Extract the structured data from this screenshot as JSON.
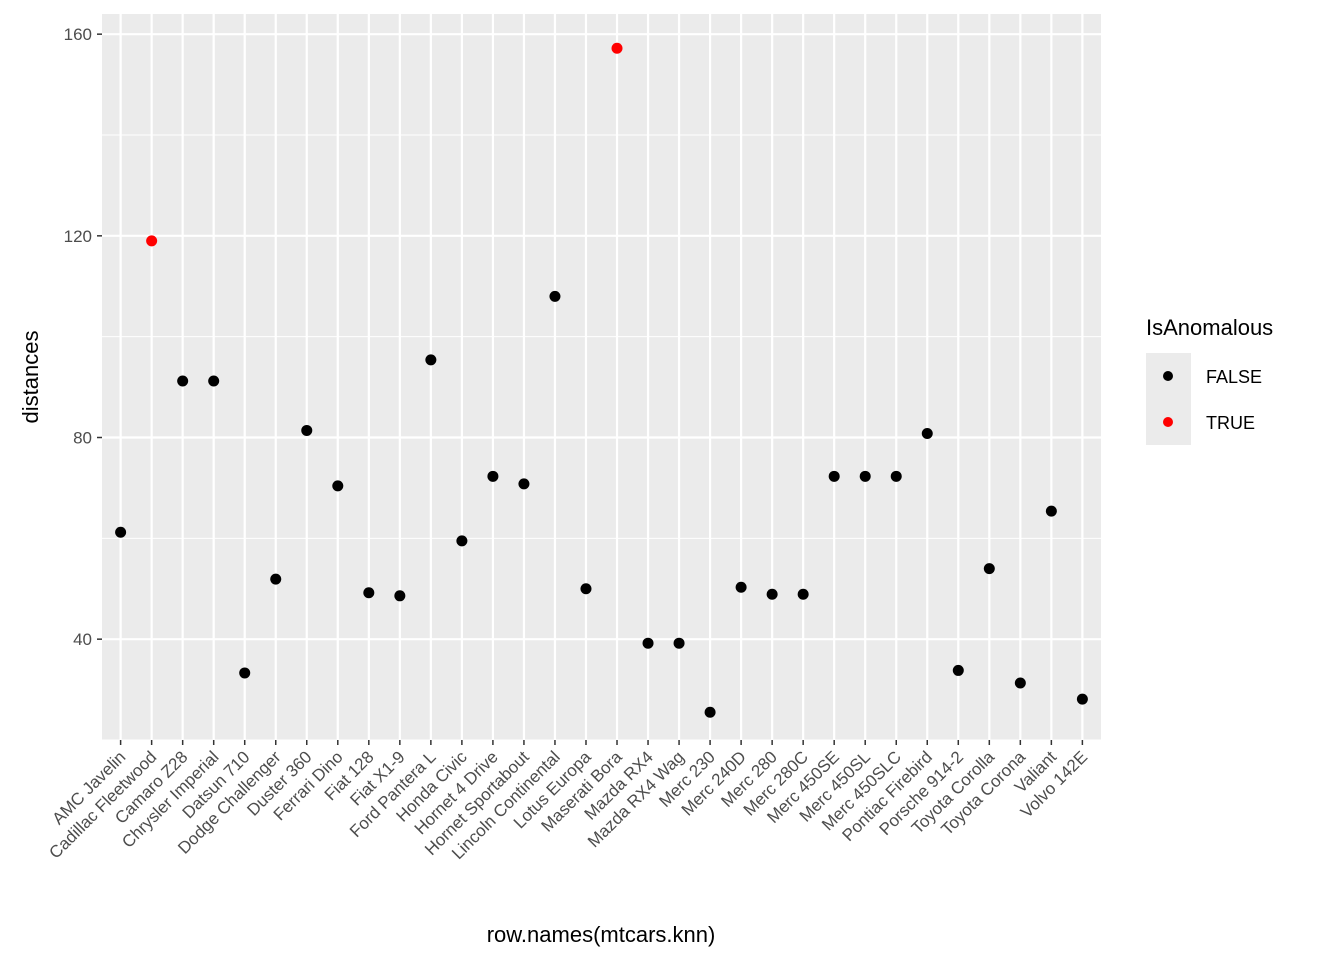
{
  "chart_data": {
    "type": "scatter",
    "title": "",
    "xlabel": "row.names(mtcars.knn)",
    "ylabel": "distances",
    "ylim": [
      20,
      164
    ],
    "y_ticks": [
      40,
      80,
      120,
      160
    ],
    "categories": [
      "AMC Javelin",
      "Cadillac Fleetwood",
      "Camaro Z28",
      "Chrysler Imperial",
      "Datsun 710",
      "Dodge Challenger",
      "Duster 360",
      "Ferrari Dino",
      "Fiat 128",
      "Fiat X1-9",
      "Ford Pantera L",
      "Honda Civic",
      "Hornet 4 Drive",
      "Hornet Sportabout",
      "Lincoln Continental",
      "Lotus Europa",
      "Maserati Bora",
      "Mazda RX4",
      "Mazda RX4 Wag",
      "Merc 230",
      "Merc 240D",
      "Merc 280",
      "Merc 280C",
      "Merc 450SE",
      "Merc 450SL",
      "Merc 450SLC",
      "Pontiac Firebird",
      "Porsche 914-2",
      "Toyota Corolla",
      "Toyota Corona",
      "Valiant",
      "Volvo 142E"
    ],
    "values": [
      61.2,
      119.0,
      91.2,
      91.2,
      33.3,
      51.9,
      81.4,
      70.4,
      49.2,
      48.6,
      95.4,
      59.5,
      72.3,
      70.8,
      108.0,
      50.0,
      157.2,
      39.2,
      39.2,
      25.5,
      50.3,
      48.9,
      48.9,
      72.3,
      72.3,
      72.3,
      80.8,
      33.8,
      54.0,
      31.3,
      65.4,
      28.1
    ],
    "is_anomalous": [
      false,
      true,
      false,
      false,
      false,
      false,
      false,
      false,
      false,
      false,
      false,
      false,
      false,
      false,
      false,
      false,
      true,
      false,
      false,
      false,
      false,
      false,
      false,
      false,
      false,
      false,
      false,
      false,
      false,
      false,
      false,
      false
    ],
    "grid": true,
    "legend": {
      "title": "IsAnomalous",
      "position": "right",
      "entries": [
        {
          "label": "FALSE",
          "color": "#000000"
        },
        {
          "label": "TRUE",
          "color": "#ff0000"
        }
      ]
    },
    "colors": {
      "panel_background": "#ebebeb",
      "grid": "#ffffff",
      "normal": "#000000",
      "anomalous": "#ff0000"
    }
  }
}
